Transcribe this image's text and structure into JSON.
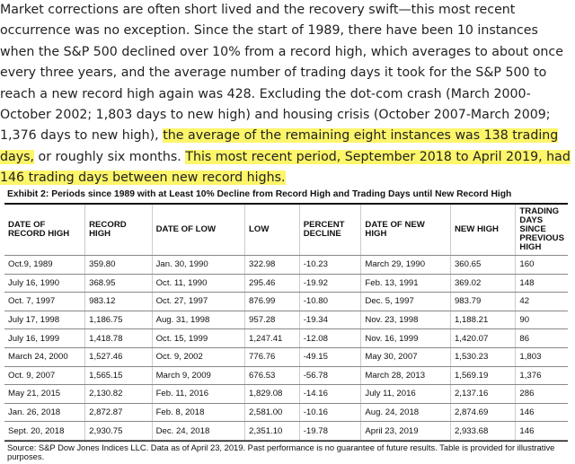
{
  "article": {
    "paragraph": [
      "Market corrections are often short lived and the recovery swift—this most recent occurrence was no exception. Since the start of 1989, there have been 10 instances when the S&P 500 declined over 10% from a record high, which averages to about once every three years, and the average number of trading days it took for the S&P 500 to reach a new record high again was 428. Excluding the dot-com crash (March 2000-October 2002; 1,803 days to new high) and housing crisis (October 2007-March 2009; 1,376 days to new high), ",
      "the average of the remaining eight instances was 138 trading days,",
      " or roughly six months. ",
      "This most recent period, September 2018 to April 2019, had 146 trading days between new record highs."
    ]
  },
  "table": {
    "title": "Exhibit 2: Periods since 1989 with at Least 10% Decline from Record High and Trading Days until New Record High",
    "headers": [
      "DATE OF RECORD HIGH",
      "RECORD HIGH",
      "DATE OF LOW",
      "LOW",
      "PERCENT DECLINE",
      "DATE OF NEW HIGH",
      "NEW HIGH",
      "TRADING DAYS SINCE PREVIOUS HIGH"
    ],
    "rows": [
      [
        "Oct.9, 1989",
        "359.80",
        "Jan. 30, 1990",
        "322.98",
        "-10.23",
        "March 29, 1990",
        "360.65",
        "160"
      ],
      [
        "July 16, 1990",
        "368.95",
        "Oct. 11, 1990",
        "295.46",
        "-19.92",
        "Feb. 13, 1991",
        "369.02",
        "148"
      ],
      [
        "Oct. 7, 1997",
        "983.12",
        "Oct. 27, 1997",
        "876.99",
        "-10.80",
        "Dec. 5, 1997",
        "983.79",
        "42"
      ],
      [
        "July 17, 1998",
        "1,186.75",
        "Aug. 31, 1998",
        "957.28",
        "-19.34",
        "Nov. 23, 1998",
        "1,188.21",
        "90"
      ],
      [
        "July 16, 1999",
        "1,418.78",
        "Oct. 15, 1999",
        "1,247.41",
        "-12.08",
        "Nov. 16, 1999",
        "1,420.07",
        "86"
      ],
      [
        "March 24, 2000",
        "1,527.46",
        "Oct. 9, 2002",
        "776.76",
        "-49.15",
        "May 30, 2007",
        "1,530.23",
        "1,803"
      ],
      [
        "Oct. 9, 2007",
        "1,565.15",
        "March 9, 2009",
        "676.53",
        "-56.78",
        "March 28, 2013",
        "1,569.19",
        "1,376"
      ],
      [
        "May 21, 2015",
        "2,130.82",
        "Feb. 11, 2016",
        "1,829.08",
        "-14.16",
        "July 11, 2016",
        "2,137.16",
        "286"
      ],
      [
        "Jan. 26, 2018",
        "2,872.87",
        "Feb. 8, 2018",
        "2,581.00",
        "-10.16",
        "Aug. 24, 2018",
        "2,874.69",
        "146"
      ],
      [
        "Sept. 20, 2018",
        "2,930.75",
        "Dec. 24, 2018",
        "2,351.10",
        "-19.78",
        "April 23, 2019",
        "2,933.68",
        "146"
      ]
    ],
    "source": "Source: S&P Dow Jones Indices LLC. Data as of April 23, 2019. Past performance is no guarantee of future results. Table is provided for illustrative purposes."
  }
}
